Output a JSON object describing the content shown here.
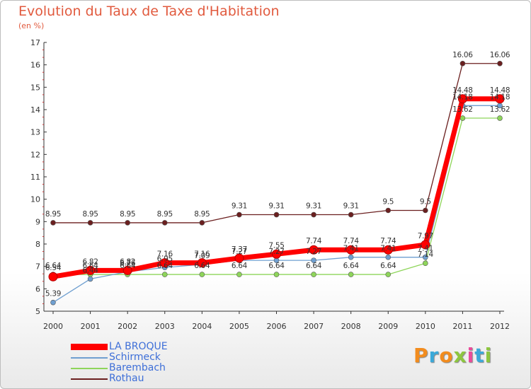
{
  "title": "Evolution du Taux de Taxe d'Habitation",
  "subtitle": "(en %)",
  "logo": {
    "text": "Proxiti",
    "colors": [
      "#f28c1e",
      "#3ba9d9",
      "#f28c1e",
      "#8dc63f",
      "#e94c9a",
      "#3ba9d9",
      "#8dc63f"
    ]
  },
  "chart_data": {
    "type": "line",
    "x": [
      "2000",
      "2001",
      "2002",
      "2003",
      "2004",
      "2005",
      "2006",
      "2007",
      "2008",
      "2009",
      "2010",
      "2011",
      "2012"
    ],
    "ylim": [
      5,
      17
    ],
    "yticks": [
      "5",
      "6",
      "7",
      "8",
      "9",
      "10",
      "11",
      "12",
      "13",
      "14",
      "15",
      "16",
      "17"
    ],
    "grid": false,
    "legend": "bottom-left",
    "series": [
      {
        "name": "Rothau",
        "color": "#6b1f1f",
        "values": [
          8.95,
          8.95,
          8.95,
          8.95,
          8.95,
          9.31,
          9.31,
          9.31,
          9.31,
          9.5,
          9.5,
          16.06,
          16.06
        ],
        "labels": [
          "8.95",
          "8.95",
          "8.95",
          "8.95",
          "8.95",
          "9.31",
          "9.31",
          "9.31",
          "9.31",
          "9.5",
          "9.5",
          "16.06",
          "16.06"
        ]
      },
      {
        "name": "Barembach",
        "color": "#8ed55a",
        "values": [
          6.64,
          6.64,
          6.64,
          6.64,
          6.64,
          6.64,
          6.64,
          6.64,
          6.64,
          6.64,
          7.14,
          13.62,
          13.62
        ],
        "labels": [
          "6.64",
          "6.64",
          "6.64",
          "6.64",
          "6.64",
          "6.64",
          "6.64",
          "6.64",
          "6.64",
          "6.64",
          "7.14",
          "13.62",
          "13.62"
        ]
      },
      {
        "name": "Schirmeck",
        "color": "#6f9fd0",
        "values": [
          5.39,
          6.44,
          6.76,
          6.95,
          7.09,
          7.27,
          7.27,
          7.27,
          7.41,
          7.41,
          7.41,
          14.18,
          14.18
        ],
        "labels": [
          "5.39",
          "6.44",
          "6.76",
          "6.95",
          "7.09",
          "7.27",
          "7.27",
          "7.27",
          "7.41",
          "7.41",
          "7.41",
          "14.18",
          "14.18"
        ]
      },
      {
        "name": "LA BROQUE",
        "color": "#ff0000",
        "values": [
          6.54,
          6.82,
          6.82,
          7.16,
          7.16,
          7.37,
          7.55,
          7.74,
          7.74,
          7.74,
          7.97,
          14.48,
          14.48
        ],
        "labels": [
          "6.54",
          "6.82",
          "6.82",
          "7.16",
          "7.16",
          "7.37",
          "7.55",
          "7.74",
          "7.74",
          "7.74",
          "7.97",
          "14.48",
          "14.48"
        ]
      }
    ],
    "legend_order": [
      "LA BROQUE",
      "Schirmeck",
      "Barembach",
      "Rothau"
    ]
  }
}
